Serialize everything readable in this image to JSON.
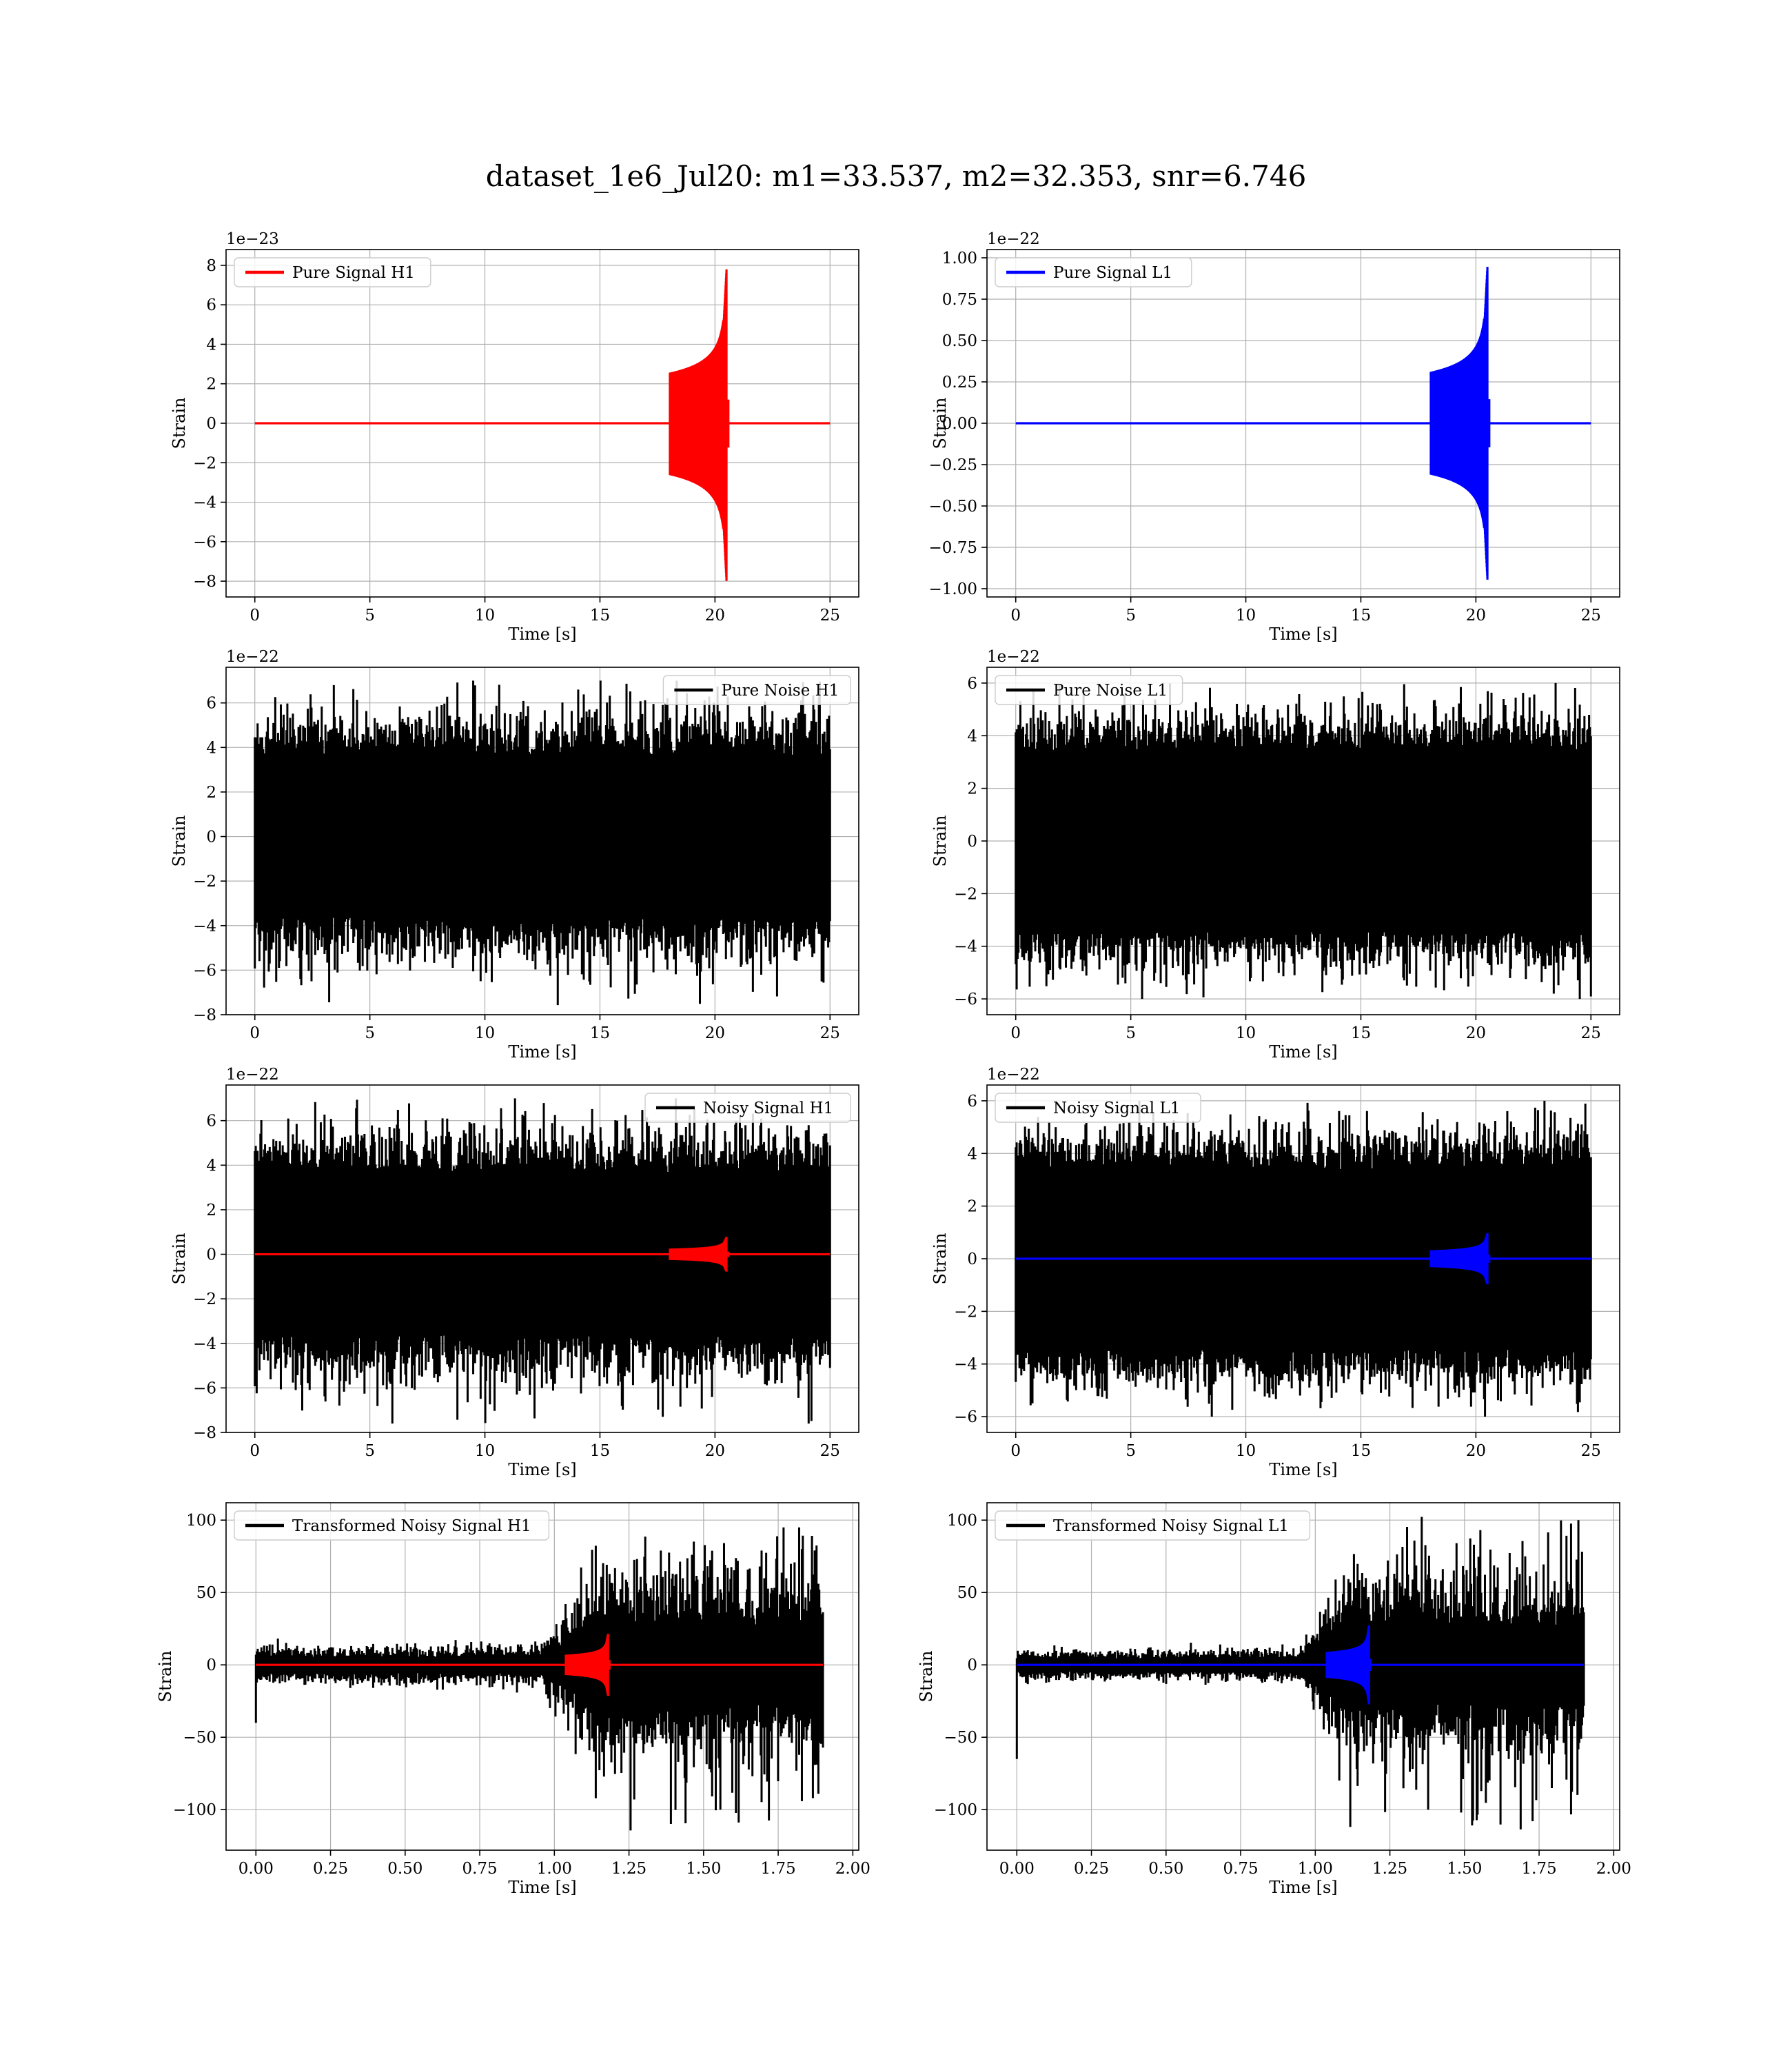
{
  "suptitle": "dataset_1e6_Jul20: m1=33.537, m2=32.353, snr=6.746",
  "colors": {
    "h1_signal": "#ff0000",
    "l1_signal": "#0000ff",
    "noise": "#000000",
    "grid": "#b0b0b0"
  },
  "chart_data": [
    {
      "type": "line",
      "panel": "top-left",
      "xlabel": "Time [s]",
      "ylabel": "Strain",
      "offset_label": "1e−23",
      "xlim": [
        -1.25,
        26.25
      ],
      "ylim": [
        -8.8,
        8.8
      ],
      "xticks": [
        0,
        5,
        10,
        15,
        20,
        25
      ],
      "xtick_labels": [
        "0",
        "5",
        "10",
        "15",
        "20",
        "25"
      ],
      "yticks": [
        -8,
        -6,
        -4,
        -2,
        0,
        2,
        4,
        6,
        8
      ],
      "ytick_labels": [
        "−8",
        "−6",
        "−4",
        "−2",
        "0",
        "2",
        "4",
        "6",
        "8"
      ],
      "legend_loc": "upper left",
      "grid": true,
      "series": [
        {
          "name": "Pure Signal H1",
          "color": "#ff0000",
          "kind": "chirp",
          "t_start": 0,
          "t_end": 25,
          "t_merger": 20.5,
          "peak": 8.0,
          "min": -8.2,
          "baseline": 0
        }
      ]
    },
    {
      "type": "line",
      "panel": "top-right",
      "xlabel": "Time [s]",
      "ylabel": "Strain",
      "offset_label": "1e−22",
      "xlim": [
        -1.25,
        26.25
      ],
      "ylim": [
        -1.05,
        1.05
      ],
      "xticks": [
        0,
        5,
        10,
        15,
        20,
        25
      ],
      "xtick_labels": [
        "0",
        "5",
        "10",
        "15",
        "20",
        "25"
      ],
      "yticks": [
        -1.0,
        -0.75,
        -0.5,
        -0.25,
        0,
        0.25,
        0.5,
        0.75,
        1.0
      ],
      "ytick_labels": [
        "−1.00",
        "−0.75",
        "−0.50",
        "−0.25",
        "0.00",
        "0.25",
        "0.50",
        "0.75",
        "1.00"
      ],
      "legend_loc": "upper left",
      "grid": true,
      "series": [
        {
          "name": "Pure Signal L1",
          "color": "#0000ff",
          "kind": "chirp",
          "t_start": 0,
          "t_end": 25,
          "t_merger": 20.5,
          "peak": 0.97,
          "min": -0.97,
          "baseline": 0
        }
      ]
    },
    {
      "type": "line",
      "panel": "row2-left",
      "xlabel": "Time [s]",
      "ylabel": "Strain",
      "offset_label": "1e−22",
      "xlim": [
        -1.25,
        26.25
      ],
      "ylim": [
        -8.0,
        7.6
      ],
      "xticks": [
        0,
        5,
        10,
        15,
        20,
        25
      ],
      "xtick_labels": [
        "0",
        "5",
        "10",
        "15",
        "20",
        "25"
      ],
      "yticks": [
        -8,
        -6,
        -4,
        -2,
        0,
        2,
        4,
        6
      ],
      "ytick_labels": [
        "−8",
        "−6",
        "−4",
        "−2",
        "0",
        "2",
        "4",
        "6"
      ],
      "legend_loc": "upper right",
      "grid": true,
      "series": [
        {
          "name": "Pure Noise H1",
          "color": "#000000",
          "kind": "noise",
          "t_start": 0,
          "t_end": 25,
          "max": 7.0,
          "min": -7.6,
          "typical": 3.6
        }
      ]
    },
    {
      "type": "line",
      "panel": "row2-right",
      "xlabel": "Time [s]",
      "ylabel": "Strain",
      "offset_label": "1e−22",
      "xlim": [
        -1.25,
        26.25
      ],
      "ylim": [
        -6.6,
        6.6
      ],
      "xticks": [
        0,
        5,
        10,
        15,
        20,
        25
      ],
      "xtick_labels": [
        "0",
        "5",
        "10",
        "15",
        "20",
        "25"
      ],
      "yticks": [
        -6,
        -4,
        -2,
        0,
        2,
        4,
        6
      ],
      "ytick_labels": [
        "−6",
        "−4",
        "−2",
        "0",
        "2",
        "4",
        "6"
      ],
      "legend_loc": "upper left",
      "grid": true,
      "series": [
        {
          "name": "Pure Noise L1",
          "color": "#000000",
          "kind": "noise",
          "t_start": 0,
          "t_end": 25,
          "max": 6.0,
          "min": -6.0,
          "typical": 3.4
        }
      ]
    },
    {
      "type": "line",
      "panel": "row3-left",
      "xlabel": "Time [s]",
      "ylabel": "Strain",
      "offset_label": "1e−22",
      "xlim": [
        -1.25,
        26.25
      ],
      "ylim": [
        -8.0,
        7.6
      ],
      "xticks": [
        0,
        5,
        10,
        15,
        20,
        25
      ],
      "xtick_labels": [
        "0",
        "5",
        "10",
        "15",
        "20",
        "25"
      ],
      "yticks": [
        -8,
        -6,
        -4,
        -2,
        0,
        2,
        4,
        6
      ],
      "ytick_labels": [
        "−8",
        "−6",
        "−4",
        "−2",
        "0",
        "2",
        "4",
        "6"
      ],
      "legend_loc": "upper right",
      "grid": true,
      "series": [
        {
          "name": "Noisy Signal H1",
          "color": "#000000",
          "kind": "noise",
          "t_start": 0,
          "t_end": 25,
          "max": 7.0,
          "min": -7.6,
          "typical": 3.6
        },
        {
          "name": "",
          "color": "#ff0000",
          "kind": "chirp",
          "t_start": 0,
          "t_end": 25,
          "t_merger": 20.5,
          "peak": 0.8,
          "min": -0.8,
          "baseline": 0
        }
      ]
    },
    {
      "type": "line",
      "panel": "row3-right",
      "xlabel": "Time [s]",
      "ylabel": "Strain",
      "offset_label": "1e−22",
      "xlim": [
        -1.25,
        26.25
      ],
      "ylim": [
        -6.6,
        6.6
      ],
      "xticks": [
        0,
        5,
        10,
        15,
        20,
        25
      ],
      "xtick_labels": [
        "0",
        "5",
        "10",
        "15",
        "20",
        "25"
      ],
      "yticks": [
        -6,
        -4,
        -2,
        0,
        2,
        4,
        6
      ],
      "ytick_labels": [
        "−6",
        "−4",
        "−2",
        "0",
        "2",
        "4",
        "6"
      ],
      "legend_loc": "upper left",
      "grid": true,
      "series": [
        {
          "name": "Noisy Signal L1",
          "color": "#000000",
          "kind": "noise",
          "t_start": 0,
          "t_end": 25,
          "max": 6.0,
          "min": -6.0,
          "typical": 3.4
        },
        {
          "name": "",
          "color": "#0000ff",
          "kind": "chirp",
          "t_start": 0,
          "t_end": 25,
          "t_merger": 20.5,
          "peak": 1.0,
          "min": -1.0,
          "baseline": 0
        }
      ]
    },
    {
      "type": "line",
      "panel": "bottom-left",
      "xlabel": "Time [s]",
      "ylabel": "Strain",
      "offset_label": "",
      "xlim": [
        -0.1,
        2.02
      ],
      "ylim": [
        -128,
        112
      ],
      "xticks": [
        0,
        0.25,
        0.5,
        0.75,
        1.0,
        1.25,
        1.5,
        1.75,
        2.0
      ],
      "xtick_labels": [
        "0.00",
        "0.25",
        "0.50",
        "0.75",
        "1.00",
        "1.25",
        "1.50",
        "1.75",
        "2.00"
      ],
      "yticks": [
        -100,
        -50,
        0,
        50,
        100
      ],
      "ytick_labels": [
        "−100",
        "−50",
        "0",
        "50",
        "100"
      ],
      "legend_loc": "upper left",
      "grid": true,
      "series": [
        {
          "name": "Transformed Noisy Signal H1",
          "color": "#000000",
          "kind": "whitened",
          "t_start": 0,
          "t_end": 1.9,
          "max": 95,
          "min": -115,
          "early_amp": 10,
          "late_amp": 50,
          "rise_start": 0.95,
          "rise_end": 1.15,
          "spike_start": -40
        },
        {
          "name": "",
          "color": "#ff0000",
          "kind": "chirp",
          "t_start": 0,
          "t_end": 1.9,
          "t_merger": 1.18,
          "peak": 22,
          "min": -22,
          "baseline": 0
        }
      ]
    },
    {
      "type": "line",
      "panel": "bottom-right",
      "xlabel": "Time [s]",
      "ylabel": "Strain",
      "offset_label": "",
      "xlim": [
        -0.1,
        2.02
      ],
      "ylim": [
        -128,
        112
      ],
      "xticks": [
        0,
        0.25,
        0.5,
        0.75,
        1.0,
        1.25,
        1.5,
        1.75,
        2.0
      ],
      "xtick_labels": [
        "0.00",
        "0.25",
        "0.50",
        "0.75",
        "1.00",
        "1.25",
        "1.50",
        "1.75",
        "2.00"
      ],
      "yticks": [
        -100,
        -50,
        0,
        50,
        100
      ],
      "ytick_labels": [
        "−100",
        "−50",
        "0",
        "50",
        "100"
      ],
      "legend_loc": "upper left",
      "grid": true,
      "series": [
        {
          "name": "Transformed Noisy Signal L1",
          "color": "#000000",
          "kind": "whitened",
          "t_start": 0,
          "t_end": 1.9,
          "max": 105,
          "min": -115,
          "early_amp": 8,
          "late_amp": 48,
          "rise_start": 0.95,
          "rise_end": 1.1,
          "spike_start": -65
        },
        {
          "name": "",
          "color": "#0000ff",
          "kind": "chirp",
          "t_start": 0,
          "t_end": 1.9,
          "t_merger": 1.18,
          "peak": 28,
          "min": -28,
          "baseline": 0
        }
      ]
    }
  ]
}
